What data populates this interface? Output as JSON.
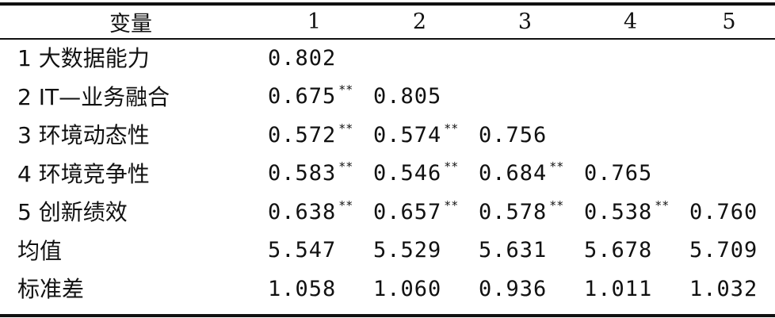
{
  "table": {
    "headers": [
      "变量",
      "1",
      "2",
      "3",
      "4",
      "5"
    ],
    "rows": [
      {
        "label": "1 大数据能力",
        "cells": [
          [
            "0.802",
            ""
          ],
          [
            "",
            ""
          ],
          [
            "",
            ""
          ],
          [
            "",
            ""
          ],
          [
            "",
            ""
          ]
        ]
      },
      {
        "label": "2 IT—业务融合",
        "cells": [
          [
            "0.675",
            "**"
          ],
          [
            "0.805",
            ""
          ],
          [
            "",
            ""
          ],
          [
            "",
            ""
          ],
          [
            "",
            ""
          ]
        ]
      },
      {
        "label": "3 环境动态性",
        "cells": [
          [
            "0.572",
            "**"
          ],
          [
            "0.574",
            "**"
          ],
          [
            "0.756",
            ""
          ],
          [
            "",
            ""
          ],
          [
            "",
            ""
          ]
        ]
      },
      {
        "label": "4 环境竞争性",
        "cells": [
          [
            "0.583",
            "**"
          ],
          [
            "0.546",
            "**"
          ],
          [
            "0.684",
            "**"
          ],
          [
            "0.765",
            ""
          ],
          [
            "",
            ""
          ]
        ]
      },
      {
        "label": "5 创新绩效",
        "cells": [
          [
            "0.638",
            "**"
          ],
          [
            "0.657",
            "**"
          ],
          [
            "0.578",
            "**"
          ],
          [
            "0.538",
            "**"
          ],
          [
            "0.760",
            ""
          ]
        ]
      },
      {
        "label": "均值",
        "cells": [
          [
            "5.547",
            ""
          ],
          [
            "5.529",
            ""
          ],
          [
            "5.631",
            ""
          ],
          [
            "5.678",
            ""
          ],
          [
            "5.709",
            ""
          ]
        ]
      },
      {
        "label": "标准差",
        "cells": [
          [
            "1.058",
            ""
          ],
          [
            "1.060",
            ""
          ],
          [
            "0.936",
            ""
          ],
          [
            "1.011",
            ""
          ],
          [
            "1.032",
            ""
          ]
        ]
      }
    ]
  }
}
